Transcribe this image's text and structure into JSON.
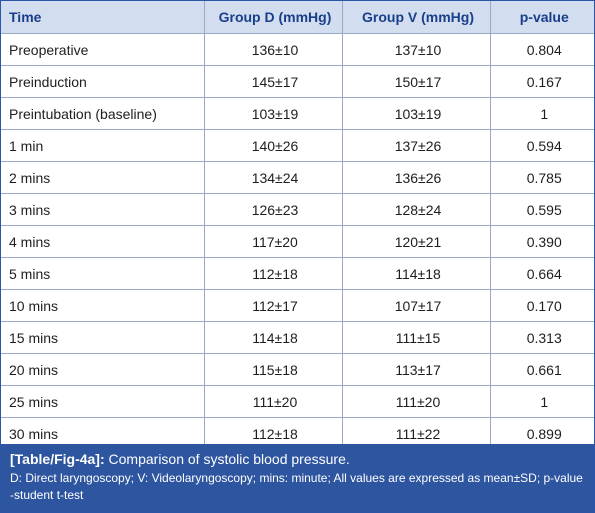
{
  "table": {
    "headers": [
      "Time",
      "Group D (mmHg)",
      "Group V (mmHg)",
      "p-value"
    ],
    "rows": [
      [
        "Preoperative",
        "136±10",
        "137±10",
        "0.804"
      ],
      [
        "Preinduction",
        "145±17",
        "150±17",
        "0.167"
      ],
      [
        "Preintubation (baseline)",
        "103±19",
        "103±19",
        "1"
      ],
      [
        "1 min",
        "140±26",
        "137±26",
        "0.594"
      ],
      [
        "2 mins",
        "134±24",
        "136±26",
        "0.785"
      ],
      [
        "3 mins",
        "126±23",
        "128±24",
        "0.595"
      ],
      [
        "4 mins",
        "117±20",
        "120±21",
        "0.390"
      ],
      [
        "5 mins",
        "112±18",
        "114±18",
        "0.664"
      ],
      [
        "10 mins",
        "112±17",
        "107±17",
        "0.170"
      ],
      [
        "15 mins",
        "114±18",
        "111±15",
        "0.313"
      ],
      [
        "20 mins",
        "115±18",
        "113±17",
        "0.661"
      ],
      [
        "25 mins",
        "111±20",
        "111±20",
        "1"
      ],
      [
        "30 mins",
        "112±18",
        "111±22",
        "0.899"
      ]
    ]
  },
  "caption": {
    "label": "[Table/Fig-4a]:",
    "title": "Comparison of systolic blood pressure.",
    "notes": "D: Direct laryngoscopy; V: Videolaryngoscopy; mins: minute; All values are expressed as mean±SD; p-value -student t-test"
  },
  "colors": {
    "header_bg": "#d2ddf0",
    "header_text": "#1a3f8a",
    "caption_bg": "#2d55a0",
    "border": "#2b56a5"
  }
}
